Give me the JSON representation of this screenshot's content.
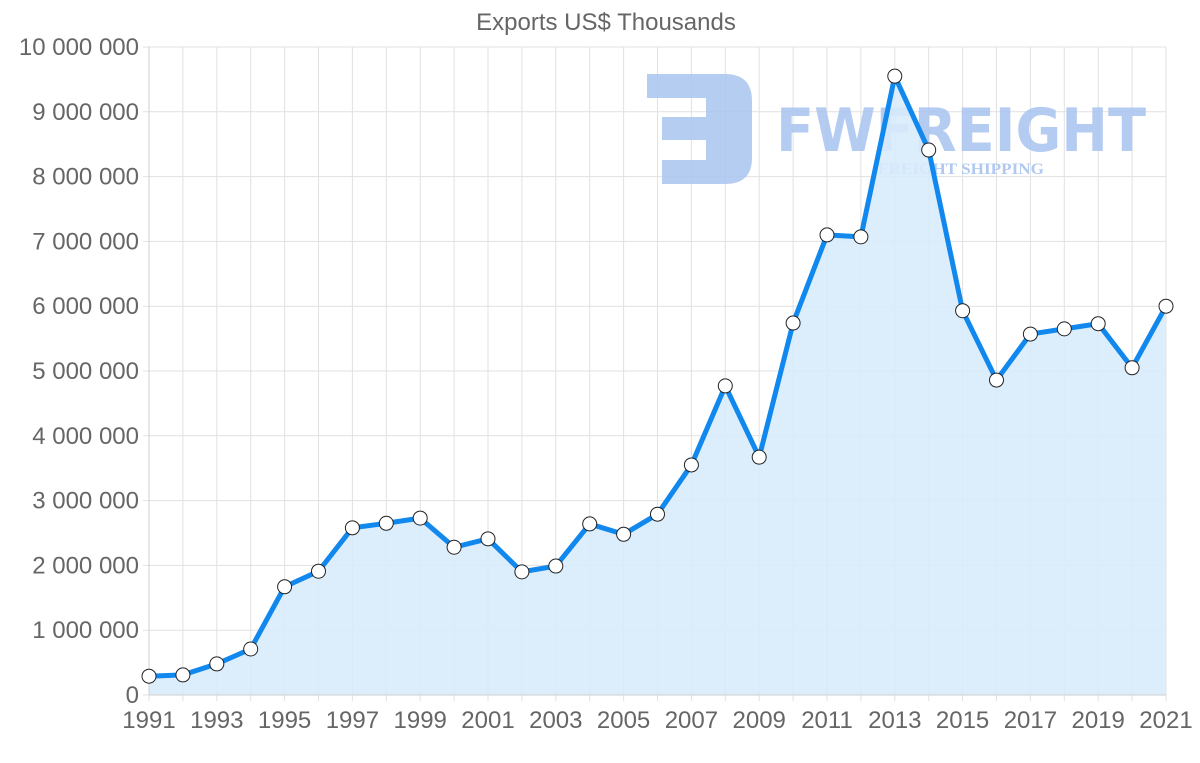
{
  "chart_data": {
    "type": "area",
    "title": "Exports US$ Thousands",
    "xlabel": "",
    "ylabel": "",
    "ylim": [
      0,
      10000000
    ],
    "xlim": [
      1991,
      2021
    ],
    "grid": true,
    "legend": null,
    "y_ticks": [
      0,
      1000000,
      2000000,
      3000000,
      4000000,
      5000000,
      6000000,
      7000000,
      8000000,
      9000000,
      10000000
    ],
    "y_tick_labels": [
      "0",
      "1 000 000",
      "2 000 000",
      "3 000 000",
      "4 000 000",
      "5 000 000",
      "6 000 000",
      "7 000 000",
      "8 000 000",
      "9 000 000",
      "10 000 000"
    ],
    "x_tick_labels": [
      "1991",
      "1993",
      "1995",
      "1997",
      "1999",
      "2001",
      "2003",
      "2005",
      "2007",
      "2009",
      "2011",
      "2013",
      "2015",
      "2017",
      "2019",
      "2021"
    ],
    "categories": [
      1991,
      1992,
      1993,
      1994,
      1995,
      1996,
      1997,
      1998,
      1999,
      2000,
      2001,
      2002,
      2003,
      2004,
      2005,
      2006,
      2007,
      2008,
      2009,
      2010,
      2011,
      2012,
      2013,
      2014,
      2015,
      2016,
      2017,
      2018,
      2019,
      2020,
      2021
    ],
    "series": [
      {
        "name": "Exports US$ Thousands",
        "values": [
          290000,
          310000,
          480000,
          710000,
          1670000,
          1910000,
          2580000,
          2650000,
          2730000,
          2280000,
          2410000,
          1900000,
          1990000,
          2640000,
          2480000,
          2790000,
          3550000,
          4770000,
          3670000,
          5740000,
          7100000,
          7070000,
          9550000,
          8410000,
          5930000,
          4860000,
          5570000,
          5650000,
          5730000,
          5050000,
          6000000
        ]
      }
    ]
  },
  "style": {
    "line_color": "#1088ee",
    "fill_color": "#d8ebfc",
    "point_fill": "#ffffff",
    "point_stroke": "#222222",
    "text_color": "#666666",
    "watermark_color": "#a9c4f0"
  },
  "watermark": {
    "brand": "FWFREIGHT",
    "tagline": "FREIGHT SHIPPING",
    "logo_icon": "fw-logo-icon"
  }
}
